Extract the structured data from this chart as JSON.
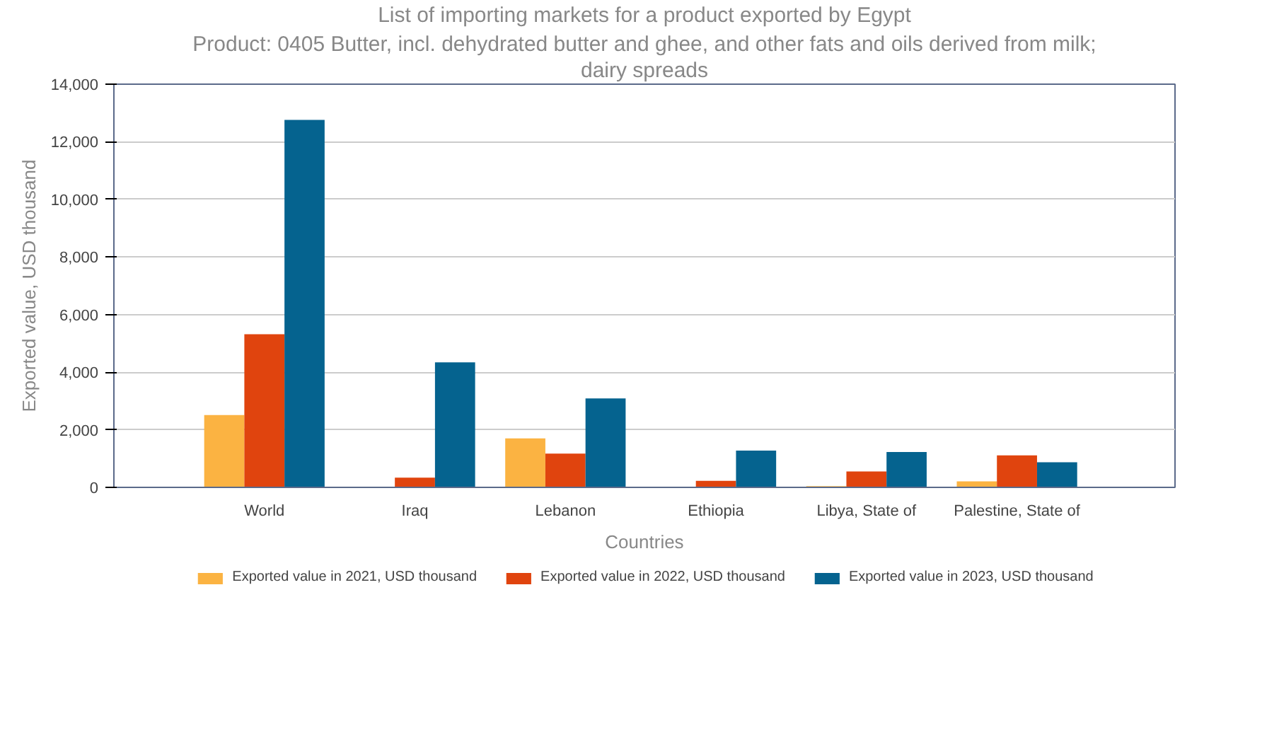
{
  "chart_data": {
    "type": "bar",
    "title": "List of importing markets for a product exported by Egypt",
    "subtitle": "Product: 0405 Butter, incl. dehydrated butter and ghee, and other fats and oils derived from milk; dairy spreads",
    "xlabel": "Countries",
    "ylabel": "Exported value, USD thousand",
    "categories": [
      "World",
      "Iraq",
      "Lebanon",
      "Ethiopia",
      "Libya, State of",
      "Palestine, State of"
    ],
    "series": [
      {
        "name": "Exported value in 2021, USD thousand",
        "color": "#fbb342",
        "values": [
          2510,
          0,
          1700,
          0,
          40,
          210
        ]
      },
      {
        "name": "Exported value in 2022, USD thousand",
        "color": "#e0440e",
        "values": [
          5320,
          340,
          1170,
          230,
          550,
          1110
        ]
      },
      {
        "name": "Exported value in 2023, USD thousand",
        "color": "#05638f",
        "values": [
          12760,
          4340,
          3090,
          1280,
          1230,
          870
        ]
      }
    ],
    "ylim": [
      0,
      14000
    ],
    "yticks": [
      {
        "value": 0,
        "label": "0"
      },
      {
        "value": 2000,
        "label": "2,000"
      },
      {
        "value": 4000,
        "label": "4,000"
      },
      {
        "value": 6000,
        "label": "6,000"
      },
      {
        "value": 8000,
        "label": "8,000"
      },
      {
        "value": 10000,
        "label": "10,000"
      },
      {
        "value": 12000,
        "label": "12,000"
      },
      {
        "value": 14000,
        "label": "14,000"
      }
    ],
    "grid": "y",
    "legend": "bottom"
  }
}
